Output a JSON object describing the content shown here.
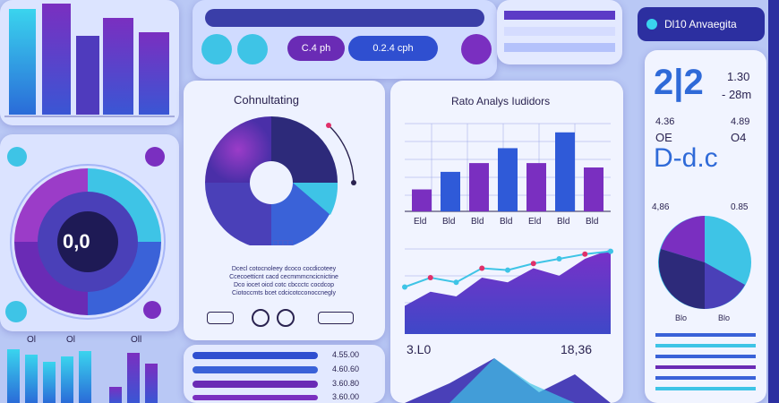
{
  "toolbar": {
    "pill_left_label": "C.4 ph",
    "pill_right_label": "0.2.4 cph"
  },
  "top_right_badge": {
    "label": "Dl10 Anvaegita"
  },
  "center_panel": {
    "title": "Cohnultating",
    "donut_tag": "□□□□",
    "body_line_1": "Dcecl cotocnoleey dcoco cocdicoteey",
    "body_line_2": "Ccecoetticnt cacd cecmmmcncicnictine",
    "body_line_3": "Dco iocet oicd cotc cbccctc cocdcop",
    "body_line_4": "Ciotoccmts bcet cdcicotcconoccnegly"
  },
  "bottom_center_values": [
    "4.55.00",
    "4.60.60",
    "3.60.80",
    "3.60.00"
  ],
  "analysis_panel": {
    "title": "Rato Analys Iudidors",
    "bar_chart_data": {
      "type": "bar",
      "categories": [
        "Eld",
        "Bld",
        "Bld",
        "Bld",
        "Eld",
        "Bld",
        "Bld"
      ],
      "values": [
        25,
        45,
        55,
        72,
        55,
        90,
        50
      ]
    },
    "area_chart_data": {
      "type": "area",
      "series": [
        {
          "values": [
            30,
            45,
            40,
            60,
            55,
            70,
            62,
            80,
            90
          ]
        },
        {
          "values": [
            50,
            60,
            55,
            70,
            68,
            75,
            80,
            85,
            88
          ]
        }
      ]
    }
  },
  "bottom_right_stats": {
    "left": "3.L0",
    "right": "18,36"
  },
  "gauge": {
    "value": "0,0"
  },
  "left_small_labels": [
    "Ol",
    "Ol",
    "Oll"
  ],
  "far_right": {
    "big_number": "2|2",
    "metric_1": "1.30",
    "metric_2": "- 28m",
    "row_1_left": "4.36",
    "row_1_right": "4.89",
    "row_2_left": "OE",
    "row_2_right": "O4",
    "code_text": "D-d.c",
    "pie_label_left": "4,86",
    "pie_label_right": "0.85",
    "pie_bottom_left": "Blo",
    "pie_bottom_right": "Blo"
  },
  "colors": {
    "accent_purple": "#6a2bb5",
    "accent_cyan": "#29c4e0",
    "accent_blue": "#2f5ad8"
  }
}
